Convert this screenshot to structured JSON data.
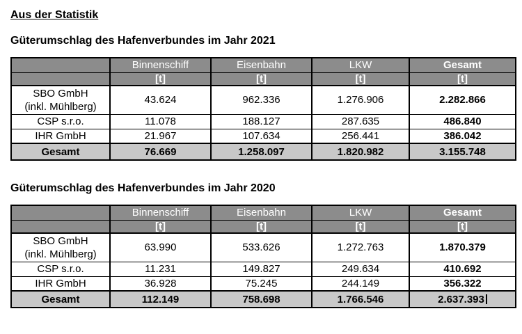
{
  "page": {
    "title": "Aus der Statistik"
  },
  "colors": {
    "header_bg": "#8c8c8c",
    "header_text": "#ffffff",
    "total_row_bg": "#c8c8c8",
    "body_text": "#000000"
  },
  "tables": [
    {
      "caption": "Güterumschlag des Hafenverbundes im Jahr 2021",
      "columns": [
        "",
        "Binnenschiff",
        "Eisenbahn",
        "LKW",
        "Gesamt"
      ],
      "units": [
        "",
        "[t]",
        "[t]",
        "[t]",
        "[t]"
      ],
      "rows": [
        {
          "label_lines": [
            "SBO GmbH",
            "(inkl. Mühlberg)"
          ],
          "values": [
            "43.624",
            "962.336",
            "1.276.906",
            "2.282.866"
          ]
        },
        {
          "label_lines": [
            "CSP s.r.o."
          ],
          "values": [
            "11.078",
            "188.127",
            "287.635",
            "486.840"
          ]
        },
        {
          "label_lines": [
            "IHR GmbH"
          ],
          "values": [
            "21.967",
            "107.634",
            "256.441",
            "386.042"
          ]
        }
      ],
      "total": {
        "label": "Gesamt",
        "values": [
          "76.669",
          "1.258.097",
          "1.820.982",
          "3.155.748"
        ]
      }
    },
    {
      "caption": "Güterumschlag des Hafenverbundes im Jahr 2020",
      "columns": [
        "",
        "Binnenschiff",
        "Eisenbahn",
        "LKW",
        "Gesamt"
      ],
      "units": [
        "",
        "[t]",
        "[t]",
        "[t]",
        "[t]"
      ],
      "rows": [
        {
          "label_lines": [
            "SBO GmbH",
            "(inkl. Mühlberg)"
          ],
          "values": [
            "63.990",
            "533.626",
            "1.272.763",
            "1.870.379"
          ]
        },
        {
          "label_lines": [
            "CSP s.r.o."
          ],
          "values": [
            "11.231",
            "149.827",
            "249.634",
            "410.692"
          ]
        },
        {
          "label_lines": [
            "IHR GmbH"
          ],
          "values": [
            "36.928",
            "75.245",
            "244.149",
            "356.322"
          ]
        }
      ],
      "total": {
        "label": "Gesamt",
        "values": [
          "112.149",
          "758.698",
          "1.766.546",
          "2.637.393"
        ]
      }
    }
  ]
}
